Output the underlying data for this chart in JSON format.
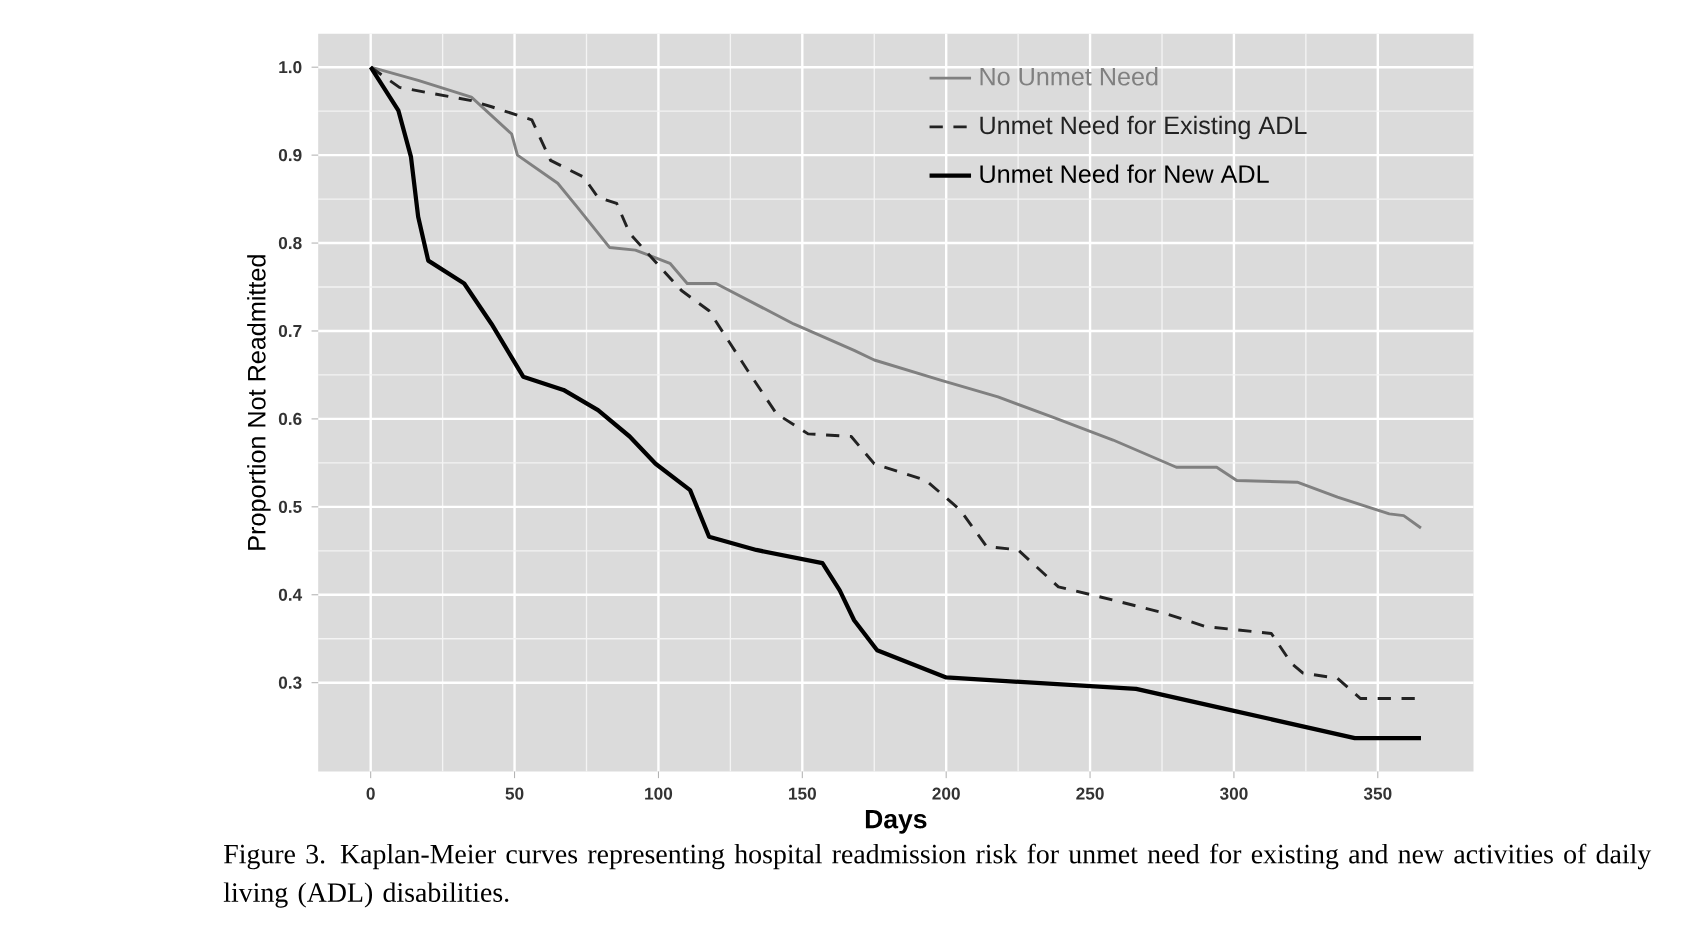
{
  "chart_data": {
    "type": "line",
    "xlabel": "Days",
    "ylabel": "Proportion Not Readmitted",
    "xlim": [
      -18.25,
      383.25
    ],
    "ylim": [
      0.199,
      1.038
    ],
    "xticks": [
      0,
      50,
      100,
      150,
      200,
      250,
      300,
      350
    ],
    "yticks": [
      0.3,
      0.4,
      0.5,
      0.6,
      0.7,
      0.8,
      0.9,
      {
        "value": 1.0,
        "label": "1.0"
      }
    ],
    "grid": true,
    "legend": "top right",
    "series": [
      {
        "name": "No Unmet Need",
        "color": "#808080",
        "line_style": "solid",
        "x": [
          0,
          16.5,
          35,
          49,
          51,
          65,
          72,
          83,
          92,
          104,
          110,
          120,
          147,
          168,
          175,
          198,
          218,
          237,
          258,
          280,
          294,
          301,
          322,
          336,
          354,
          359,
          365
        ],
        "values": [
          1.0,
          0.985,
          0.966,
          0.924,
          0.9,
          0.868,
          0.84,
          0.795,
          0.792,
          0.777,
          0.754,
          0.754,
          0.708,
          0.678,
          0.667,
          0.644,
          0.625,
          0.602,
          0.576,
          0.545,
          0.545,
          0.53,
          0.528,
          0.511,
          0.492,
          0.49,
          0.476
        ]
      },
      {
        "name": "Unmet Need for Existing ADL",
        "color": "#222222",
        "line_style": "dashed",
        "x": [
          0,
          10,
          35,
          42,
          56,
          62.5,
          74,
          79,
          85.5,
          90,
          108,
          117.6,
          131,
          141,
          152,
          167,
          175,
          193,
          205,
          214,
          225,
          239,
          258,
          276,
          290,
          313,
          320,
          324,
          336,
          344,
          365
        ],
        "values": [
          1.0,
          0.977,
          0.962,
          0.955,
          0.94,
          0.894,
          0.875,
          0.852,
          0.845,
          0.811,
          0.746,
          0.723,
          0.655,
          0.606,
          0.583,
          0.58,
          0.549,
          0.53,
          0.496,
          0.455,
          0.451,
          0.409,
          0.394,
          0.379,
          0.364,
          0.356,
          0.322,
          0.311,
          0.305,
          0.282,
          0.282
        ]
      },
      {
        "name": "Unmet Need for New ADL",
        "color": "#000000",
        "line_style": "solid",
        "x": [
          0,
          9.6,
          14,
          16.5,
          20,
          32.5,
          42,
          53,
          67,
          79,
          90,
          99,
          111,
          117.6,
          134,
          157,
          163,
          168,
          176,
          200,
          266,
          300,
          342,
          365
        ],
        "values": [
          1.0,
          0.951,
          0.898,
          0.83,
          0.78,
          0.754,
          0.708,
          0.648,
          0.633,
          0.61,
          0.58,
          0.549,
          0.519,
          0.466,
          0.451,
          0.436,
          0.405,
          0.371,
          0.337,
          0.306,
          0.293,
          0.268,
          0.237,
          0.237
        ]
      }
    ],
    "annotations": [
      "Figure 3. Kaplan-Meier curves representing hospital readmission risk for unmet need for existing and new activities of daily living (ADL) disabilities."
    ]
  }
}
